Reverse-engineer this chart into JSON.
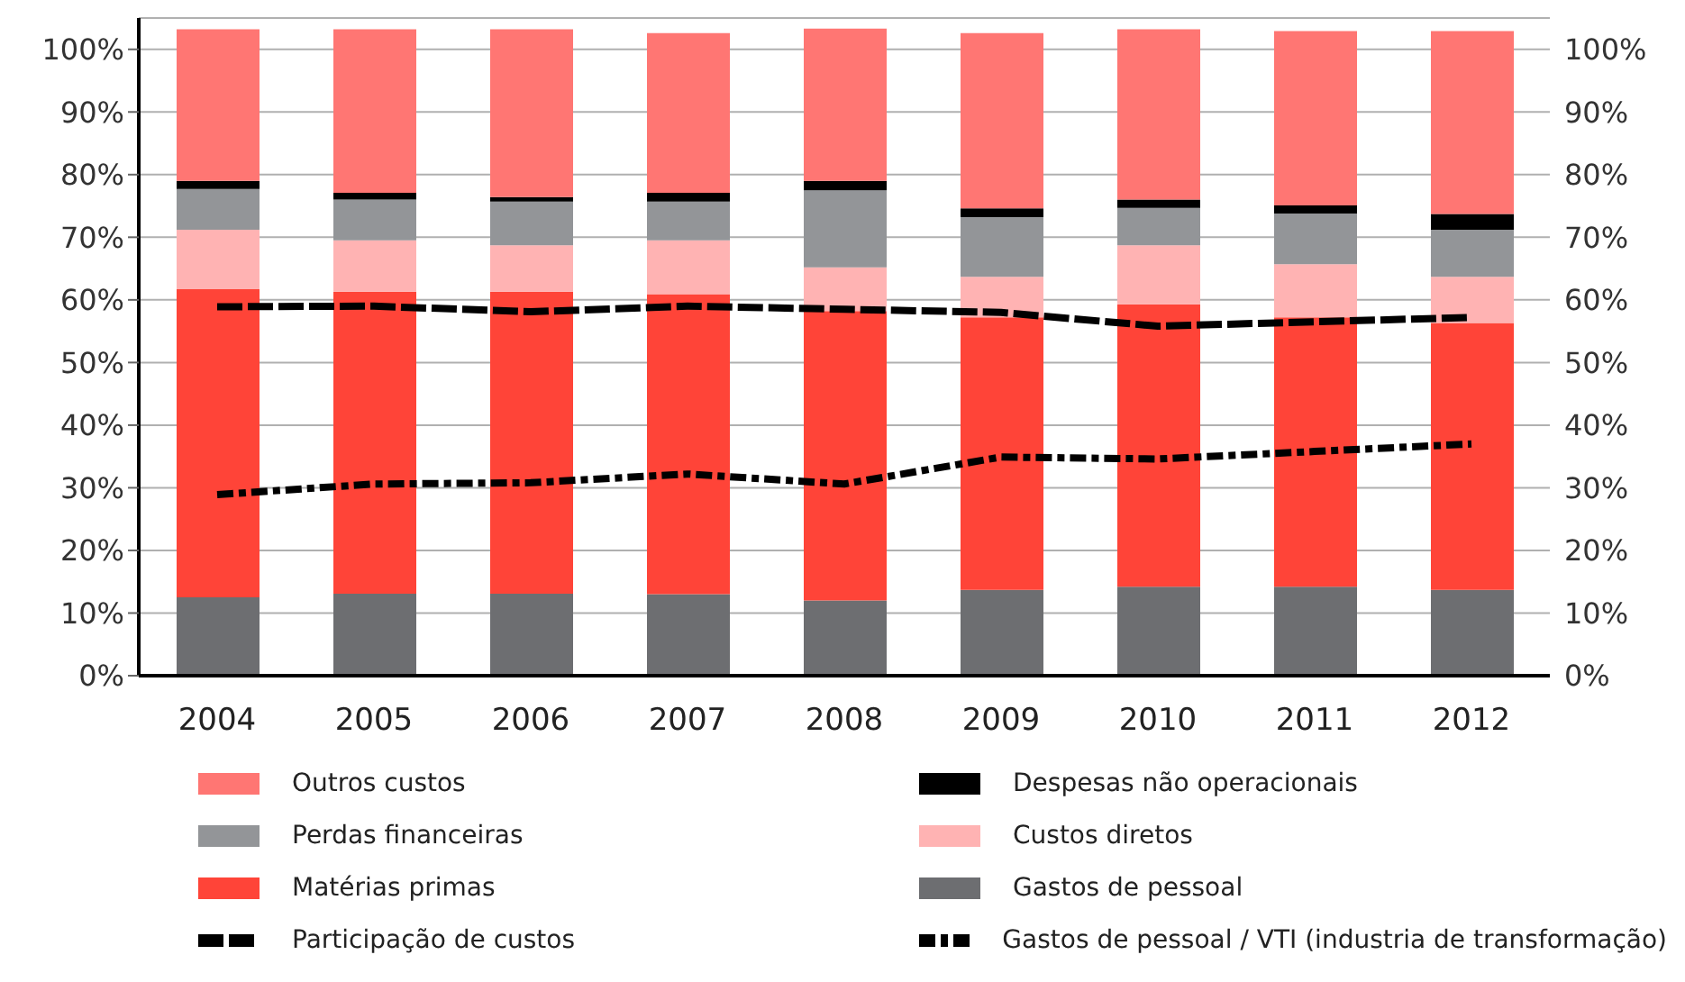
{
  "chart_data": {
    "type": "bar",
    "stacked": true,
    "categories": [
      "2004",
      "2005",
      "2006",
      "2007",
      "2008",
      "2009",
      "2010",
      "2011",
      "2012"
    ],
    "series": [
      {
        "name": "Gastos de pessoal",
        "color": "#6d6e71",
        "values": [
          12.5,
          13.1,
          13.1,
          13,
          12,
          13.7,
          14.2,
          14.2,
          13.7
        ]
      },
      {
        "name": "Matérias primas",
        "color": "#ff4438",
        "values": [
          49.2,
          48.2,
          48.2,
          47.9,
          46.2,
          43.5,
          45.1,
          43,
          42.6
        ]
      },
      {
        "name": "Custos diretos",
        "color": "#ffb3b3",
        "values": [
          9.5,
          8.2,
          7.4,
          8.6,
          7,
          6.5,
          9.4,
          8.5,
          7.4
        ]
      },
      {
        "name": "Perdas financeiras",
        "color": "#939598",
        "values": [
          6.5,
          6.5,
          7,
          6.2,
          12.3,
          9.5,
          6,
          8.1,
          7.5
        ]
      },
      {
        "name": "Despesas não operacionais",
        "color": "#000000",
        "values": [
          1.3,
          1.1,
          0.7,
          1.4,
          1.5,
          1.4,
          1.3,
          1.3,
          2.5
        ]
      },
      {
        "name": "Outros custos",
        "color": "#ff7673",
        "values": [
          24.2,
          26.1,
          26.8,
          25.5,
          24.3,
          28,
          27.2,
          27.8,
          29.2
        ]
      },
      {
        "name": "Participação de custos",
        "type": "line",
        "line_style": "dotted",
        "color": "#000000",
        "values": [
          58.9,
          59,
          58.1,
          59,
          58.5,
          58,
          55.8,
          56.5,
          57.2
        ]
      },
      {
        "name": "Gastos de pessoal / VTI (industria de transformação)",
        "type": "line",
        "line_style": "dashed",
        "color": "#000000",
        "values": [
          28.9,
          30.6,
          30.8,
          32.2,
          30.6,
          34.9,
          34.6,
          35.8,
          37
        ]
      }
    ],
    "ylim": [
      0,
      105
    ],
    "yticks": [
      {
        "value": 0,
        "label": "0%"
      },
      {
        "value": 10,
        "label": "10%"
      },
      {
        "value": 20,
        "label": "20%"
      },
      {
        "value": 30,
        "label": "30%"
      },
      {
        "value": 40,
        "label": "40%"
      },
      {
        "value": 50,
        "label": "50%"
      },
      {
        "value": 60,
        "label": "60%"
      },
      {
        "value": 70,
        "label": "70%"
      },
      {
        "value": 80,
        "label": "80%"
      },
      {
        "value": 90,
        "label": "90%"
      },
      {
        "value": 100,
        "label": "100%"
      }
    ],
    "y2lim": [
      0,
      105
    ],
    "y2ticks": [
      {
        "value": 0,
        "label": "0%"
      },
      {
        "value": 10,
        "label": "10%"
      },
      {
        "value": 20,
        "label": "20%"
      },
      {
        "value": 30,
        "label": "30%"
      },
      {
        "value": 40,
        "label": "40%"
      },
      {
        "value": 50,
        "label": "50%"
      },
      {
        "value": 60,
        "label": "60%"
      },
      {
        "value": 70,
        "label": "70%"
      },
      {
        "value": 80,
        "label": "80%"
      },
      {
        "value": 90,
        "label": "90%"
      },
      {
        "value": 100,
        "label": "100%"
      }
    ],
    "grid": "y",
    "legend": "bottom"
  }
}
